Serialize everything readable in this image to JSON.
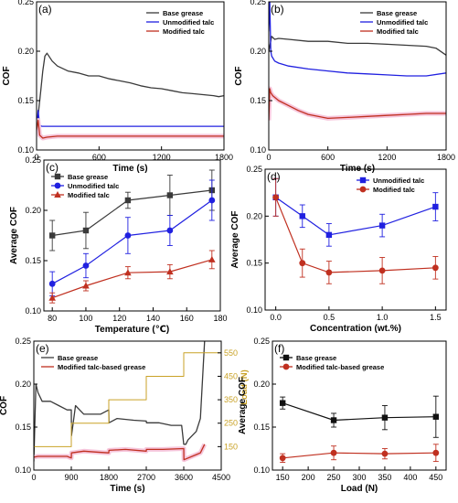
{
  "chart_data": [
    {
      "id": "a",
      "panel_label": "(a)",
      "type": "line",
      "xlabel": "Time (s)",
      "ylabel": "COF",
      "xlim": [
        0,
        1800
      ],
      "ylim": [
        0.1,
        0.25
      ],
      "xticks": [
        0,
        600,
        1200,
        1800
      ],
      "yticks": [
        0.1,
        0.15,
        0.2,
        0.25
      ],
      "xtick_labels": [
        "0",
        "600",
        "1200",
        "1800"
      ],
      "ytick_labels": [
        "0.10",
        "0.15",
        "0.20",
        "0.25"
      ],
      "legend": "top-right",
      "series": [
        {
          "name": "Base grease",
          "color": "#3a3a3a",
          "x": [
            0,
            20,
            40,
            60,
            80,
            100,
            150,
            200,
            300,
            400,
            500,
            600,
            700,
            800,
            900,
            1000,
            1100,
            1200,
            1300,
            1400,
            1500,
            1600,
            1700,
            1750,
            1800
          ],
          "y": [
            0.12,
            0.14,
            0.16,
            0.18,
            0.195,
            0.198,
            0.19,
            0.185,
            0.18,
            0.178,
            0.175,
            0.175,
            0.172,
            0.17,
            0.168,
            0.165,
            0.163,
            0.162,
            0.16,
            0.158,
            0.157,
            0.156,
            0.155,
            0.154,
            0.155
          ]
        },
        {
          "name": "Unmodified talc",
          "color": "#2020e0",
          "x": [
            0,
            15,
            30,
            50,
            100,
            200,
            400,
            600,
            800,
            1000,
            1200,
            1400,
            1600,
            1800
          ],
          "y": [
            0.12,
            0.14,
            0.125,
            0.124,
            0.124,
            0.124,
            0.124,
            0.124,
            0.124,
            0.124,
            0.124,
            0.124,
            0.124,
            0.124
          ]
        },
        {
          "name": "Modified talc",
          "color": "#c03020",
          "x": [
            0,
            15,
            30,
            60,
            100,
            200,
            400,
            600,
            800,
            1000,
            1200,
            1400,
            1600,
            1800
          ],
          "y": [
            0.12,
            0.13,
            0.115,
            0.112,
            0.113,
            0.114,
            0.114,
            0.114,
            0.114,
            0.114,
            0.114,
            0.114,
            0.114,
            0.114
          ]
        }
      ]
    },
    {
      "id": "b",
      "panel_label": "(b)",
      "type": "line",
      "xlabel": "Time (s)",
      "ylabel": "COF",
      "xlim": [
        0,
        1800
      ],
      "ylim": [
        0.1,
        0.25
      ],
      "xticks": [
        0,
        600,
        1200,
        1800
      ],
      "yticks": [
        0.1,
        0.15,
        0.2,
        0.25
      ],
      "xtick_labels": [
        "0",
        "600",
        "1200",
        "1800"
      ],
      "ytick_labels": [
        "0.10",
        "0.15",
        "0.20",
        "0.25"
      ],
      "legend": "top-right",
      "series": [
        {
          "name": "Base grease",
          "color": "#3a3a3a",
          "x": [
            0,
            30,
            60,
            100,
            200,
            400,
            600,
            800,
            1000,
            1200,
            1400,
            1600,
            1700,
            1800
          ],
          "y": [
            0.2,
            0.215,
            0.212,
            0.213,
            0.212,
            0.21,
            0.21,
            0.208,
            0.208,
            0.207,
            0.206,
            0.205,
            0.203,
            0.196
          ]
        },
        {
          "name": "Unmodified talc",
          "color": "#2020e0",
          "x": [
            0,
            10,
            20,
            30,
            60,
            100,
            200,
            400,
            600,
            800,
            1000,
            1200,
            1400,
            1600,
            1800
          ],
          "y": [
            0.22,
            0.25,
            0.2,
            0.195,
            0.19,
            0.188,
            0.185,
            0.182,
            0.18,
            0.178,
            0.177,
            0.176,
            0.175,
            0.175,
            0.178
          ]
        },
        {
          "name": "Modified talc",
          "color": "#c03020",
          "x": [
            0,
            10,
            20,
            40,
            100,
            200,
            300,
            400,
            500,
            600,
            800,
            1000,
            1200,
            1400,
            1600,
            1800
          ],
          "y": [
            0.13,
            0.162,
            0.158,
            0.155,
            0.15,
            0.145,
            0.14,
            0.136,
            0.134,
            0.132,
            0.133,
            0.134,
            0.135,
            0.136,
            0.137,
            0.137
          ]
        }
      ]
    },
    {
      "id": "c",
      "panel_label": "(c)",
      "type": "line",
      "xlabel": "Temperature (℃)",
      "ylabel": "Average COF",
      "xlim": [
        75,
        180
      ],
      "ylim": [
        0.1,
        0.25
      ],
      "xticks": [
        80,
        100,
        120,
        140,
        160,
        180
      ],
      "yticks": [
        0.1,
        0.15,
        0.2,
        0.25
      ],
      "xtick_labels": [
        "80",
        "100",
        "120",
        "140",
        "160",
        "180"
      ],
      "ytick_labels": [
        "0.10",
        "0.15",
        "0.20",
        "0.25"
      ],
      "legend": "top-left",
      "x": [
        80,
        100,
        125,
        150,
        175
      ],
      "series": [
        {
          "name": "Base grease",
          "color": "#3a3a3a",
          "marker": "square",
          "values": [
            0.175,
            0.18,
            0.21,
            0.215,
            0.22
          ],
          "errors": [
            0.015,
            0.018,
            0.008,
            0.02,
            0.02
          ]
        },
        {
          "name": "Unmodified talc",
          "color": "#2020e0",
          "marker": "circle",
          "values": [
            0.127,
            0.145,
            0.175,
            0.18,
            0.21
          ],
          "errors": [
            0.012,
            0.012,
            0.018,
            0.015,
            0.02
          ]
        },
        {
          "name": "Modified talc",
          "color": "#c03020",
          "marker": "triangle",
          "values": [
            0.113,
            0.125,
            0.138,
            0.139,
            0.151
          ],
          "errors": [
            0.005,
            0.005,
            0.006,
            0.007,
            0.009
          ]
        }
      ]
    },
    {
      "id": "d",
      "panel_label": "(d)",
      "type": "line",
      "xlabel": "Concentration (wt.%)",
      "ylabel": "Average COF",
      "xlim": [
        -0.1,
        1.6
      ],
      "ylim": [
        0.1,
        0.25
      ],
      "xticks": [
        0.0,
        0.5,
        1.0,
        1.5
      ],
      "yticks": [
        0.1,
        0.15,
        0.2,
        0.25
      ],
      "xtick_labels": [
        "0.0",
        "0.5",
        "1.0",
        "1.5"
      ],
      "ytick_labels": [
        "0.10",
        "0.15",
        "0.20",
        "0.25"
      ],
      "legend": "top-right",
      "x": [
        0,
        0.25,
        0.5,
        1.0,
        1.5
      ],
      "series": [
        {
          "name": "Unmodified talc",
          "color": "#2020e0",
          "marker": "square",
          "values": [
            0.22,
            0.2,
            0.18,
            0.19,
            0.21
          ],
          "errors": [
            0.02,
            0.012,
            0.012,
            0.012,
            0.015
          ]
        },
        {
          "name": "Modified talc",
          "color": "#c03020",
          "marker": "circle",
          "values": [
            0.22,
            0.15,
            0.14,
            0.142,
            0.145
          ],
          "errors": [
            0.02,
            0.015,
            0.012,
            0.014,
            0.012
          ]
        }
      ]
    },
    {
      "id": "e",
      "panel_label": "(e)",
      "type": "line",
      "xlabel": "Time (s)",
      "ylabel": "COF",
      "y2label": "Load (N)",
      "xlim": [
        0,
        4500
      ],
      "ylim": [
        0.1,
        0.25
      ],
      "y2lim": [
        50,
        600
      ],
      "xticks": [
        0,
        900,
        1800,
        2700,
        3600,
        4500
      ],
      "yticks": [
        0.1,
        0.15,
        0.2,
        0.25
      ],
      "y2ticks": [
        150,
        250,
        350,
        450,
        550
      ],
      "xtick_labels": [
        "0",
        "900",
        "1800",
        "2700",
        "3600",
        "4500"
      ],
      "ytick_labels": [
        "0.10",
        "0.15",
        "0.20",
        "0.25"
      ],
      "y2tick_labels": [
        "150",
        "250",
        "350",
        "450",
        "550"
      ],
      "legend": "top-left",
      "series": [
        {
          "name": "Base grease",
          "color": "#3a3a3a",
          "x": [
            0,
            50,
            100,
            200,
            400,
            600,
            800,
            900,
            905,
            1000,
            1100,
            1200,
            1400,
            1600,
            1800,
            1805,
            2000,
            2400,
            2700,
            2705,
            3000,
            3300,
            3550,
            3600,
            3650,
            3700,
            3800,
            3900,
            4000,
            4100
          ],
          "y": [
            0.11,
            0.2,
            0.19,
            0.18,
            0.18,
            0.175,
            0.17,
            0.17,
            0.14,
            0.175,
            0.17,
            0.165,
            0.165,
            0.165,
            0.17,
            0.155,
            0.16,
            0.158,
            0.157,
            0.155,
            0.155,
            0.152,
            0.152,
            0.13,
            0.13,
            0.135,
            0.14,
            0.145,
            0.16,
            0.25
          ]
        },
        {
          "name": "Modified talc-based grease",
          "color": "#c03020",
          "x": [
            0,
            100,
            400,
            800,
            900,
            905,
            1200,
            1500,
            1800,
            1805,
            2200,
            2700,
            2705,
            3100,
            3600,
            3605,
            3900,
            4000,
            4100
          ],
          "y": [
            0.115,
            0.116,
            0.116,
            0.116,
            0.114,
            0.12,
            0.122,
            0.121,
            0.12,
            0.123,
            0.124,
            0.122,
            0.124,
            0.124,
            0.125,
            0.112,
            0.118,
            0.12,
            0.13
          ]
        },
        {
          "name": "Load",
          "color": "#c9a227",
          "axis": "y2",
          "step": true,
          "x": [
            0,
            900,
            900,
            1800,
            1800,
            2700,
            2700,
            3600,
            3600,
            4500
          ],
          "y": [
            150,
            150,
            250,
            250,
            350,
            350,
            450,
            450,
            550,
            550
          ]
        }
      ]
    },
    {
      "id": "f",
      "panel_label": "(f)",
      "type": "line",
      "xlabel": "Load (N)",
      "ylabel": "Average COF",
      "xlim": [
        130,
        470
      ],
      "ylim": [
        0.1,
        0.25
      ],
      "xticks": [
        150,
        200,
        250,
        300,
        350,
        400,
        450
      ],
      "yticks": [
        0.1,
        0.15,
        0.2,
        0.25
      ],
      "xtick_labels": [
        "150",
        "200",
        "250",
        "300",
        "350",
        "400",
        "450"
      ],
      "ytick_labels": [
        "0.10",
        "0.15",
        "0.20",
        "0.25"
      ],
      "legend": "top-left",
      "x": [
        150,
        250,
        350,
        450
      ],
      "series": [
        {
          "name": "Base grease",
          "color": "#111111",
          "marker": "square",
          "values": [
            0.178,
            0.158,
            0.161,
            0.162
          ],
          "errors": [
            0.007,
            0.008,
            0.014,
            0.024
          ]
        },
        {
          "name": "Modified talc-based grease",
          "color": "#c03020",
          "marker": "circle",
          "values": [
            0.114,
            0.12,
            0.119,
            0.12
          ],
          "errors": [
            0.005,
            0.008,
            0.006,
            0.01
          ]
        }
      ]
    }
  ]
}
